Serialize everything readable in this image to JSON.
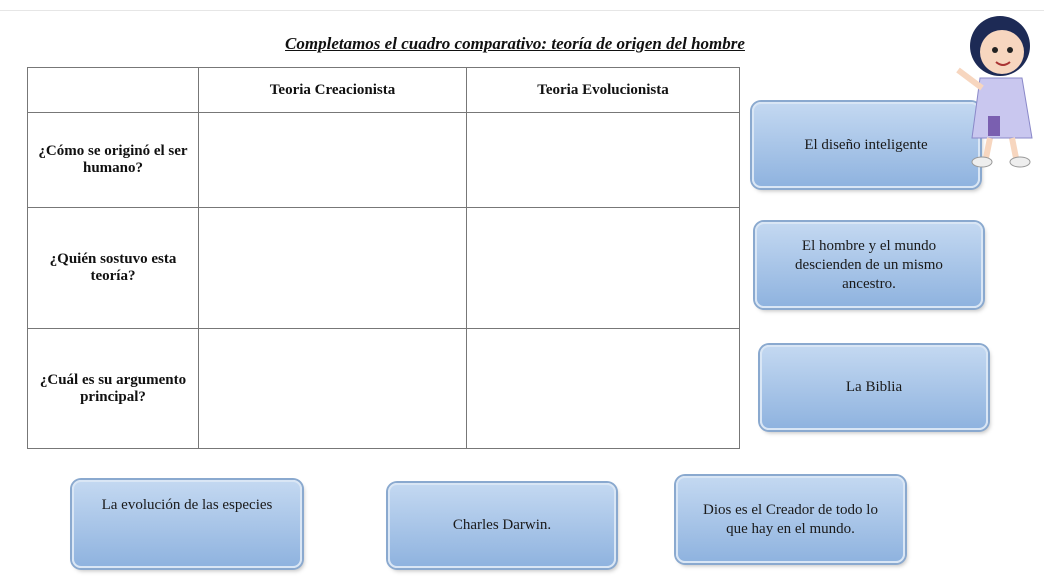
{
  "title": "Completamos el cuadro comparativo: teoría de origen del hombre",
  "table": {
    "header": [
      "Teoria Creacionista",
      "Teoria Evolucionista"
    ],
    "rows": [
      "¿Cómo se originó el ser humano?",
      "¿Quién sostuvo esta teoría?",
      "¿Cuál es su argumento principal?"
    ]
  },
  "cards": [
    "El diseño inteligente",
    "El hombre  y el mundo descienden de un mismo ancestro.",
    "La Biblia",
    "La evolución de las especies",
    "Charles Darwin.",
    "Dios es el Creador de todo lo que hay en el mundo."
  ]
}
